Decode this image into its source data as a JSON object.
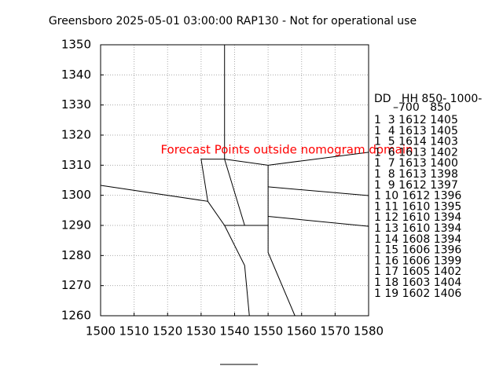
{
  "chart_data": {
    "type": "line",
    "title": "Greensboro 2025-05-01 03:00:00 RAP130 - Not for operational use",
    "annotation": "Forecast Points outside nomogram domain",
    "annotation_color": "#ff0000",
    "xlim": [
      1500,
      1580
    ],
    "ylim": [
      1260,
      1350
    ],
    "xticks": [
      1500,
      1510,
      1520,
      1530,
      1540,
      1550,
      1560,
      1570,
      1580
    ],
    "yticks": [
      1260,
      1270,
      1280,
      1290,
      1300,
      1310,
      1320,
      1330,
      1340,
      1350
    ],
    "grid": true,
    "segments": [
      {
        "x": [
          1537,
          1537
        ],
        "y": [
          1350,
          1312
        ]
      },
      {
        "x": [
          1500,
          1532,
          1530,
          1537,
          1550,
          1580
        ],
        "y": [
          1303.3,
          1298,
          1312,
          1312,
          1310,
          1314.3
        ]
      },
      {
        "x": [
          1537,
          1543
        ],
        "y": [
          1312,
          1290
        ]
      },
      {
        "x": [
          1532,
          1537,
          1550
        ],
        "y": [
          1298,
          1290,
          1290
        ]
      },
      {
        "x": [
          1537,
          1543,
          1544.4
        ],
        "y": [
          1290,
          1276.7,
          1260
        ]
      },
      {
        "x": [
          1550,
          1550,
          1558
        ],
        "y": [
          1310,
          1281,
          1260
        ]
      },
      {
        "x": [
          1550,
          1580
        ],
        "y": [
          1302.8,
          1299.9
        ]
      },
      {
        "x": [
          1550,
          1580
        ],
        "y": [
          1293,
          1289.7
        ]
      }
    ],
    "table": {
      "header": [
        "DD   HH 850- 1000-",
        "–700   850"
      ],
      "rows": [
        "1  3 1612 1405",
        "1  4 1613 1405",
        "1  5 1614 1403",
        "1  6 1613 1402",
        "1  7 1613 1400",
        "1  8 1613 1398",
        "1  9 1612 1397",
        "1 10 1612 1396",
        "1 11 1610 1395",
        "1 12 1610 1394",
        "1 13 1610 1394",
        "1 14 1608 1394",
        "1 15 1606 1396",
        "1 16 1606 1399",
        "1 17 1605 1402",
        "1 18 1603 1404",
        "1 19 1602 1406"
      ]
    }
  }
}
